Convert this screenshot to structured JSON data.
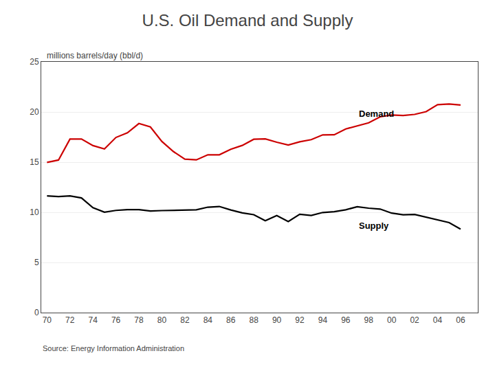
{
  "chart_data": {
    "type": "line",
    "title": "U.S. Oil Demand and Supply",
    "ylabel": "millions barrels/day (bbl/d)",
    "source": "Source: Energy Information Administration",
    "x": [
      70,
      71,
      72,
      73,
      74,
      75,
      76,
      77,
      78,
      79,
      80,
      81,
      82,
      83,
      84,
      85,
      86,
      87,
      88,
      89,
      90,
      91,
      92,
      93,
      94,
      95,
      96,
      97,
      98,
      99,
      100,
      101,
      102,
      103,
      104,
      105,
      106
    ],
    "series": [
      {
        "color": "#cc0000",
        "values": [
          14.97,
          15.21,
          17.3,
          17.31,
          16.65,
          16.32,
          17.46,
          17.92,
          18.85,
          18.51,
          17.06,
          16.06,
          15.3,
          15.23,
          15.73,
          15.73,
          16.28,
          16.67,
          17.28,
          17.32,
          16.99,
          16.71,
          17.03,
          17.24,
          17.72,
          17.73,
          18.31,
          18.62,
          18.92,
          19.52,
          19.7,
          19.65,
          19.76,
          20.03,
          20.73,
          20.8,
          20.69
        ]
      },
      {
        "color": "#000000",
        "values": [
          11.63,
          11.56,
          11.64,
          11.43,
          10.46,
          10.01,
          10.19,
          10.27,
          10.27,
          10.13,
          10.17,
          10.18,
          10.2,
          10.25,
          10.51,
          10.58,
          10.23,
          9.94,
          9.76,
          9.16,
          9.68,
          9.08,
          9.8,
          9.69,
          9.98,
          10.06,
          10.25,
          10.55,
          10.41,
          10.32,
          9.92,
          9.75,
          9.78,
          9.5,
          9.21,
          8.97,
          8.32
        ]
      }
    ],
    "annotations": [
      {
        "text": "Demand",
        "x": 97.0,
        "y": 19.2
      },
      {
        "text": "Supply",
        "x": 97.0,
        "y": 8.0
      }
    ],
    "xlim": [
      69.5,
      107.5
    ],
    "xticks": [
      70,
      72,
      74,
      76,
      78,
      80,
      82,
      84,
      86,
      88,
      90,
      92,
      94,
      96,
      98,
      {
        "value": 100,
        "label": "00"
      },
      {
        "value": 102,
        "label": "02"
      },
      {
        "value": 104,
        "label": "04"
      },
      {
        "value": 106,
        "label": "06"
      }
    ],
    "ylim": [
      0,
      25
    ],
    "yticks": [
      0,
      5,
      10,
      15,
      20,
      25
    ],
    "grid": true
  }
}
